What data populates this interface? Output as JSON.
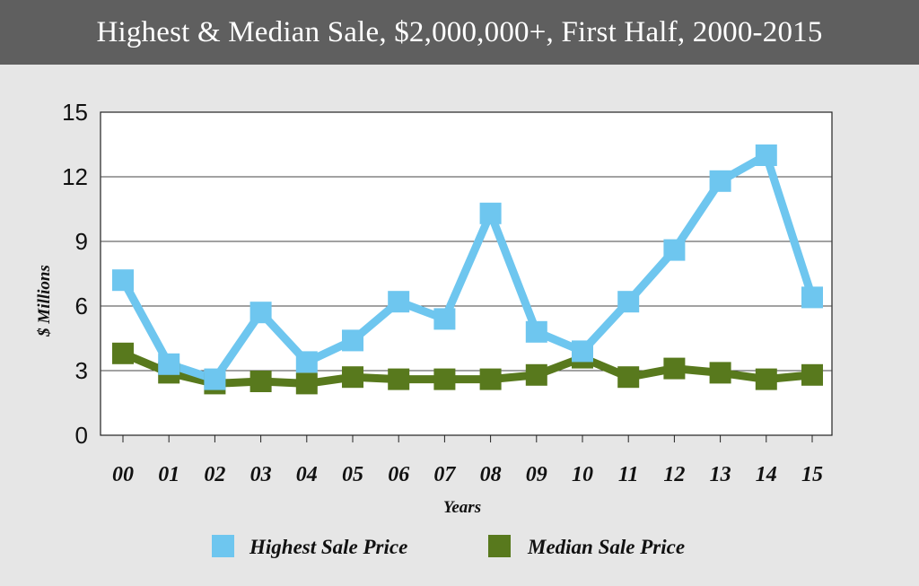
{
  "chart_data": {
    "type": "line",
    "title": "Highest & Median Sale, $2,000,000+, First Half, 2000-2015",
    "xlabel": "Years",
    "ylabel": "$ Millions",
    "categories": [
      "00",
      "01",
      "02",
      "03",
      "04",
      "05",
      "06",
      "07",
      "08",
      "09",
      "10",
      "11",
      "12",
      "13",
      "14",
      "15"
    ],
    "yticks": [
      0,
      3,
      6,
      9,
      12,
      15
    ],
    "ylim": [
      0,
      15
    ],
    "grid": true,
    "legend_position": "bottom",
    "series": [
      {
        "name": "Highest Sale Price",
        "color": "#6ec6ef",
        "values": [
          7.2,
          3.3,
          2.6,
          5.7,
          3.4,
          4.4,
          6.2,
          5.4,
          10.3,
          4.8,
          3.9,
          6.2,
          8.6,
          11.8,
          13.0,
          6.4
        ]
      },
      {
        "name": "Median Sale Price",
        "color": "#58791d",
        "values": [
          3.8,
          2.9,
          2.4,
          2.5,
          2.4,
          2.7,
          2.6,
          2.6,
          2.6,
          2.8,
          3.6,
          2.7,
          3.1,
          2.9,
          2.6,
          2.8
        ]
      }
    ]
  }
}
